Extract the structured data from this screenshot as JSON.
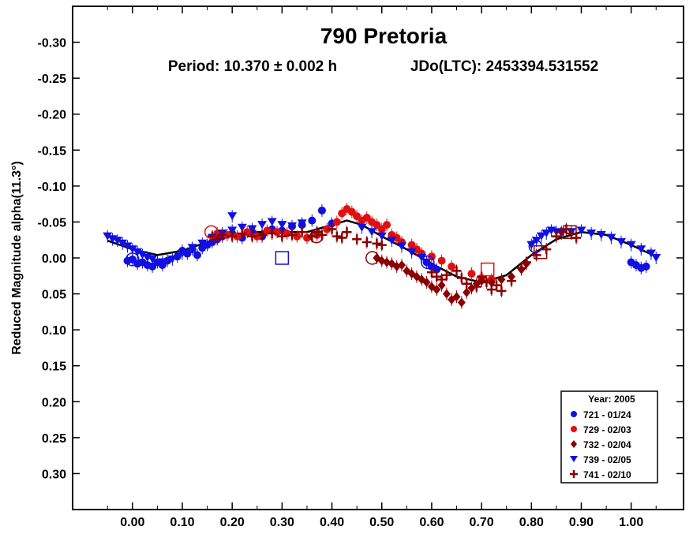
{
  "chart_data": {
    "type": "scatter",
    "title": "790 Pretoria",
    "subtitle_period": "Period: 10.370 ± 0.002 h",
    "subtitle_epoch": "JDo(LTC): 2453394.531552",
    "ylabel": "Reduced Magnitude alpha(11.3°)",
    "xlabel": "",
    "xlim": [
      -0.12,
      1.105
    ],
    "ylim": [
      0.35,
      -0.35
    ],
    "y_inverted": true,
    "x_ticks": [
      "0.00",
      "0.10",
      "0.20",
      "0.30",
      "0.40",
      "0.50",
      "0.60",
      "0.70",
      "0.80",
      "0.90",
      "1.00"
    ],
    "y_ticks": [
      "-0.30",
      "-0.25",
      "-0.20",
      "-0.15",
      "-0.10",
      "-0.05",
      "0.00",
      "0.05",
      "0.10",
      "0.15",
      "0.20",
      "0.25",
      "0.30"
    ],
    "grid": false,
    "legend_position": "bottom-right",
    "legend_title": "Year: 2005",
    "series": [
      {
        "name": "721 - 01/24",
        "marker": "circle",
        "color": "#1010e0",
        "points": [
          [
            -0.01,
            0.004
          ],
          [
            0.0,
            0.002
          ],
          [
            0.01,
            0.008
          ],
          [
            0.02,
            0.006
          ],
          [
            0.03,
            0.01
          ],
          [
            0.04,
            0.012
          ],
          [
            0.05,
            0.006
          ],
          [
            0.06,
            0.01
          ],
          [
            0.07,
            0.004
          ],
          [
            0.09,
            -0.002
          ],
          [
            0.1,
            -0.01
          ],
          [
            0.11,
            -0.006
          ],
          [
            0.12,
            -0.012
          ],
          [
            0.13,
            -0.004
          ],
          [
            0.14,
            -0.014
          ],
          [
            0.15,
            -0.018
          ],
          [
            0.16,
            -0.022
          ],
          [
            0.17,
            -0.026
          ],
          [
            0.18,
            -0.03
          ],
          [
            0.2,
            -0.034
          ],
          [
            0.22,
            -0.028
          ],
          [
            0.24,
            -0.036
          ],
          [
            0.26,
            -0.03
          ],
          [
            0.28,
            -0.04
          ],
          [
            0.3,
            -0.038
          ],
          [
            0.32,
            -0.044
          ],
          [
            0.34,
            -0.046
          ],
          [
            0.36,
            -0.052
          ],
          [
            0.38,
            -0.066
          ],
          [
            0.4,
            -0.048
          ],
          [
            0.59,
            0.006
          ],
          [
            0.6,
            0.012
          ],
          [
            0.61,
            0.016
          ],
          [
            1.0,
            0.006
          ],
          [
            1.01,
            0.01
          ],
          [
            1.02,
            0.014
          ],
          [
            1.03,
            0.012
          ]
        ]
      },
      {
        "name": "729 - 02/03",
        "marker": "circle",
        "color": "#e01010",
        "points": [
          [
            0.17,
            -0.034
          ],
          [
            0.19,
            -0.032
          ],
          [
            0.21,
            -0.03
          ],
          [
            0.23,
            -0.036
          ],
          [
            0.25,
            -0.03
          ],
          [
            0.27,
            -0.038
          ],
          [
            0.29,
            -0.036
          ],
          [
            0.31,
            -0.034
          ],
          [
            0.33,
            -0.03
          ],
          [
            0.35,
            -0.028
          ],
          [
            0.37,
            -0.032
          ],
          [
            0.39,
            -0.04
          ],
          [
            0.41,
            -0.05
          ],
          [
            0.42,
            -0.062
          ],
          [
            0.43,
            -0.068
          ],
          [
            0.44,
            -0.064
          ],
          [
            0.45,
            -0.058
          ],
          [
            0.46,
            -0.052
          ],
          [
            0.47,
            -0.056
          ],
          [
            0.48,
            -0.05
          ],
          [
            0.49,
            -0.046
          ],
          [
            0.5,
            -0.04
          ],
          [
            0.51,
            -0.046
          ],
          [
            0.52,
            -0.032
          ],
          [
            0.53,
            -0.028
          ],
          [
            0.54,
            -0.022
          ],
          [
            0.56,
            -0.018
          ],
          [
            0.57,
            -0.012
          ],
          [
            0.58,
            -0.006
          ],
          [
            0.6,
            -0.002
          ],
          [
            0.62,
            0.004
          ],
          [
            0.64,
            0.012
          ],
          [
            0.68,
            0.022
          ],
          [
            0.7,
            0.028
          ],
          [
            0.72,
            0.03
          ]
        ]
      },
      {
        "name": "732 - 02/04",
        "marker": "diamond",
        "color": "#8b0000",
        "points": [
          [
            0.49,
            0.0
          ],
          [
            0.5,
            0.004
          ],
          [
            0.51,
            0.006
          ],
          [
            0.52,
            0.008
          ],
          [
            0.53,
            0.012
          ],
          [
            0.54,
            0.01
          ],
          [
            0.55,
            0.018
          ],
          [
            0.56,
            0.022
          ],
          [
            0.57,
            0.026
          ],
          [
            0.58,
            0.03
          ],
          [
            0.59,
            0.034
          ],
          [
            0.6,
            0.04
          ],
          [
            0.61,
            0.044
          ],
          [
            0.62,
            0.038
          ],
          [
            0.63,
            0.05
          ],
          [
            0.64,
            0.058
          ],
          [
            0.65,
            0.054
          ],
          [
            0.66,
            0.062
          ],
          [
            0.67,
            0.048
          ],
          [
            0.68,
            0.042
          ],
          [
            0.69,
            0.036
          ],
          [
            0.7,
            0.032
          ],
          [
            0.72,
            0.034
          ],
          [
            0.74,
            0.03
          ],
          [
            0.76,
            0.026
          ],
          [
            0.78,
            0.016
          ],
          [
            0.79,
            0.008
          ]
        ]
      },
      {
        "name": "739 - 02/05",
        "marker": "triangle-down",
        "color": "#1010e0",
        "points": [
          [
            -0.05,
            -0.03
          ],
          [
            -0.04,
            -0.026
          ],
          [
            -0.03,
            -0.024
          ],
          [
            -0.02,
            -0.02
          ],
          [
            -0.01,
            -0.016
          ],
          [
            0.0,
            -0.012
          ],
          [
            0.01,
            -0.008
          ],
          [
            0.02,
            -0.004
          ],
          [
            0.03,
            0.0
          ],
          [
            0.04,
            0.002
          ],
          [
            0.06,
            0.006
          ],
          [
            0.08,
            0.002
          ],
          [
            0.1,
            -0.006
          ],
          [
            0.12,
            -0.014
          ],
          [
            0.14,
            -0.02
          ],
          [
            0.16,
            -0.028
          ],
          [
            0.18,
            -0.034
          ],
          [
            0.2,
            -0.038
          ],
          [
            0.2,
            -0.058
          ],
          [
            0.22,
            -0.042
          ],
          [
            0.24,
            -0.04
          ],
          [
            0.26,
            -0.046
          ],
          [
            0.28,
            -0.05
          ],
          [
            0.3,
            -0.046
          ],
          [
            0.32,
            -0.044
          ],
          [
            0.34,
            -0.048
          ],
          [
            0.46,
            -0.042
          ],
          [
            0.48,
            -0.036
          ],
          [
            0.5,
            -0.03
          ],
          [
            0.52,
            -0.024
          ],
          [
            0.54,
            -0.016
          ],
          [
            0.56,
            -0.008
          ],
          [
            0.58,
            0.0
          ],
          [
            0.8,
            -0.018
          ],
          [
            0.81,
            -0.024
          ],
          [
            0.82,
            -0.03
          ],
          [
            0.83,
            -0.034
          ],
          [
            0.84,
            -0.038
          ],
          [
            0.85,
            -0.036
          ],
          [
            0.86,
            -0.034
          ],
          [
            0.88,
            -0.036
          ],
          [
            0.9,
            -0.038
          ],
          [
            0.92,
            -0.034
          ],
          [
            0.94,
            -0.032
          ],
          [
            0.96,
            -0.028
          ],
          [
            0.98,
            -0.022
          ],
          [
            1.0,
            -0.018
          ],
          [
            1.02,
            -0.012
          ],
          [
            1.04,
            -0.006
          ],
          [
            1.05,
            0.0
          ]
        ]
      },
      {
        "name": "741 - 02/10",
        "marker": "plus",
        "color": "#8b0000",
        "points": [
          [
            0.16,
            -0.03
          ],
          [
            0.17,
            -0.028
          ],
          [
            0.18,
            -0.032
          ],
          [
            0.2,
            -0.03
          ],
          [
            0.22,
            -0.034
          ],
          [
            0.24,
            -0.03
          ],
          [
            0.26,
            -0.032
          ],
          [
            0.28,
            -0.034
          ],
          [
            0.3,
            -0.03
          ],
          [
            0.32,
            -0.032
          ],
          [
            0.34,
            -0.036
          ],
          [
            0.36,
            -0.03
          ],
          [
            0.37,
            -0.036
          ],
          [
            0.38,
            -0.032
          ],
          [
            0.4,
            -0.04
          ],
          [
            0.41,
            -0.03
          ],
          [
            0.42,
            -0.028
          ],
          [
            0.43,
            -0.036
          ],
          [
            0.45,
            -0.026
          ],
          [
            0.47,
            -0.022
          ],
          [
            0.49,
            -0.02
          ],
          [
            0.5,
            -0.018
          ],
          [
            0.6,
            0.02
          ],
          [
            0.61,
            0.026
          ],
          [
            0.62,
            0.03
          ],
          [
            0.63,
            0.024
          ],
          [
            0.65,
            0.018
          ],
          [
            0.66,
            0.028
          ],
          [
            0.67,
            0.036
          ],
          [
            0.69,
            0.04
          ],
          [
            0.7,
            0.026
          ],
          [
            0.71,
            0.034
          ],
          [
            0.72,
            0.044
          ],
          [
            0.73,
            0.038
          ],
          [
            0.74,
            0.046
          ],
          [
            0.76,
            0.032
          ],
          [
            0.78,
            0.014
          ],
          [
            0.79,
            0.006
          ],
          [
            0.81,
            -0.004
          ],
          [
            0.83,
            -0.012
          ],
          [
            0.85,
            -0.03
          ],
          [
            0.86,
            -0.036
          ],
          [
            0.87,
            -0.04
          ],
          [
            0.88,
            -0.034
          ],
          [
            0.89,
            -0.028
          ]
        ]
      }
    ],
    "model_curve": {
      "color": "#000000",
      "points": [
        [
          -0.05,
          -0.024
        ],
        [
          0.0,
          -0.012
        ],
        [
          0.05,
          -0.004
        ],
        [
          0.1,
          -0.01
        ],
        [
          0.15,
          -0.022
        ],
        [
          0.2,
          -0.032
        ],
        [
          0.25,
          -0.036
        ],
        [
          0.3,
          -0.036
        ],
        [
          0.35,
          -0.036
        ],
        [
          0.4,
          -0.046
        ],
        [
          0.43,
          -0.052
        ],
        [
          0.46,
          -0.046
        ],
        [
          0.5,
          -0.03
        ],
        [
          0.55,
          -0.012
        ],
        [
          0.6,
          0.008
        ],
        [
          0.65,
          0.026
        ],
        [
          0.7,
          0.034
        ],
        [
          0.75,
          0.024
        ],
        [
          0.8,
          -0.004
        ],
        [
          0.85,
          -0.026
        ],
        [
          0.9,
          -0.036
        ],
        [
          0.95,
          -0.032
        ],
        [
          1.0,
          -0.018
        ],
        [
          1.05,
          -0.002
        ]
      ]
    },
    "highlight_markers": [
      {
        "shape": "circle",
        "color": "#1010e0",
        "x": 0.0,
        "y": 0.002
      },
      {
        "shape": "circle",
        "color": "#e01010",
        "x": 0.158,
        "y": -0.036
      },
      {
        "shape": "square",
        "color": "#1010e0",
        "x": 0.3,
        "y": 0.0
      },
      {
        "shape": "circle",
        "color": "#8b0000",
        "x": 0.369,
        "y": -0.03
      },
      {
        "shape": "circle",
        "color": "#8b0000",
        "x": 0.481,
        "y": 0.0
      },
      {
        "shape": "circle",
        "color": "#1010e0",
        "x": 0.592,
        "y": 0.006
      },
      {
        "shape": "square",
        "color": "#e01010",
        "x": 0.712,
        "y": 0.016
      },
      {
        "shape": "circle",
        "color": "#1010e0",
        "x": 0.808,
        "y": -0.016
      },
      {
        "shape": "square",
        "color": "#8b0000",
        "x": 0.818,
        "y": -0.008
      },
      {
        "shape": "square",
        "color": "#8b0000",
        "x": 0.877,
        "y": -0.036
      }
    ]
  }
}
